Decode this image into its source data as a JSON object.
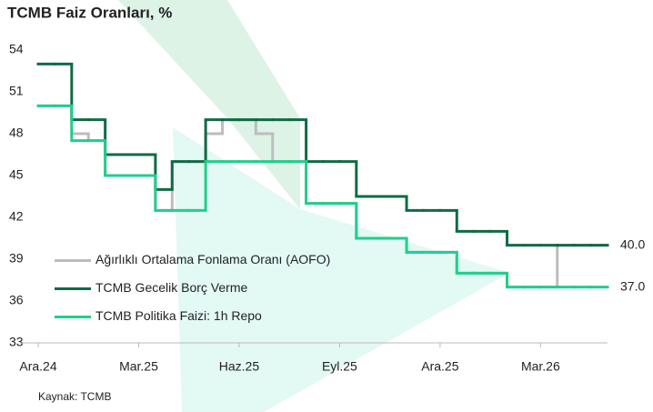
{
  "chart_data": {
    "type": "step-line",
    "title": "TCMB Faiz Oranları, %",
    "source": "Kaynak: TCMB",
    "categories": [
      "Ara.24",
      null,
      null,
      null,
      null,
      null,
      "Mar.25",
      null,
      null,
      null,
      null,
      null,
      "Haz.25",
      null,
      null,
      null,
      null,
      null,
      "Eyl.25",
      null,
      null,
      null,
      null,
      null,
      "Ara.25",
      null,
      null,
      null,
      null,
      null,
      "Mar.26",
      null,
      null,
      null
    ],
    "ylim": [
      33,
      54
    ],
    "yticks": [
      33,
      36,
      39,
      42,
      45,
      48,
      51,
      54
    ],
    "legend": "lower left",
    "series": [
      {
        "name": "Ağırlıklı Ortalama Fonlama Oranı (AOFO)",
        "color": "#bdbdbd",
        "values": [
          50,
          50,
          48,
          47.5,
          45,
          45,
          45,
          42.5,
          46,
          46,
          48,
          49,
          49,
          48,
          46,
          46,
          43,
          43,
          43,
          40.5,
          40.5,
          40.5,
          39.5,
          39.5,
          39.5,
          38,
          38,
          38,
          37,
          37,
          37,
          40,
          40,
          40
        ]
      },
      {
        "name": "TCMB Gecelik Borç Verme",
        "color": "#0f6b45",
        "values": [
          53,
          53,
          49,
          49,
          46.5,
          46.5,
          46.5,
          44,
          46,
          46,
          49,
          49,
          49,
          49,
          49,
          49,
          46,
          46,
          46,
          43.5,
          43.5,
          43.5,
          42.5,
          42.5,
          42.5,
          41,
          41,
          41,
          40,
          40,
          40,
          40,
          40,
          40
        ],
        "value_labels": [
          null,
          null,
          null,
          null,
          null,
          null,
          null,
          null,
          null,
          null,
          null,
          null,
          null,
          null,
          null,
          null,
          null,
          null,
          null,
          null,
          null,
          null,
          null,
          null,
          null,
          null,
          null,
          null,
          null,
          null,
          null,
          null,
          null,
          "40.0"
        ]
      },
      {
        "name": "TCMB Politika Faizi: 1h Repo",
        "color": "#1fcf8c",
        "values": [
          50,
          50,
          47.5,
          47.5,
          45,
          45,
          45,
          42.5,
          42.5,
          42.5,
          46,
          46,
          46,
          46,
          46,
          46,
          43,
          43,
          43,
          40.5,
          40.5,
          40.5,
          39.5,
          39.5,
          39.5,
          38,
          38,
          38,
          37,
          37,
          37,
          37,
          37,
          37
        ],
        "value_labels": [
          null,
          null,
          null,
          null,
          null,
          null,
          null,
          null,
          null,
          null,
          null,
          null,
          null,
          null,
          null,
          null,
          null,
          null,
          null,
          null,
          null,
          null,
          null,
          null,
          null,
          null,
          null,
          null,
          null,
          null,
          null,
          null,
          null,
          "37.0"
        ]
      }
    ]
  }
}
